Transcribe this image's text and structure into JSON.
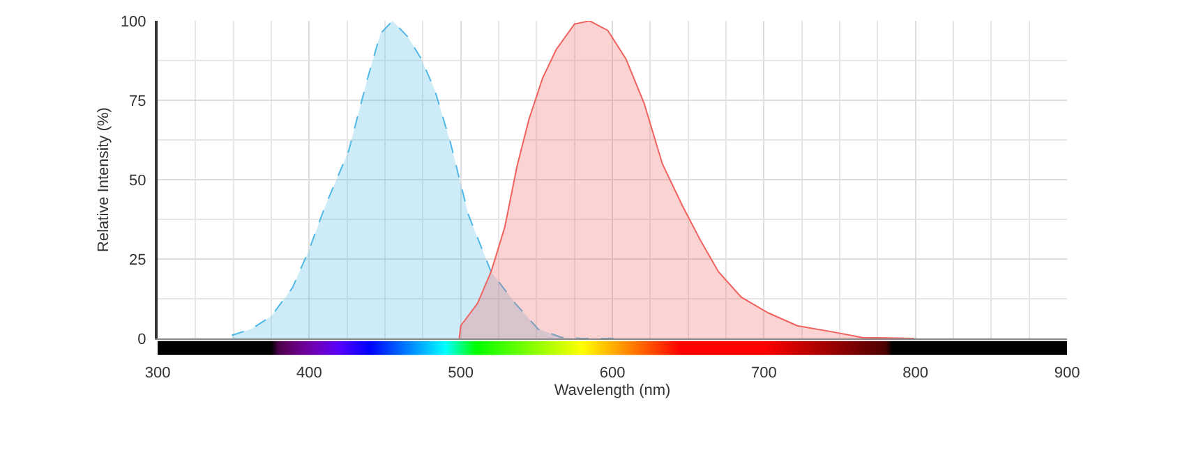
{
  "chart_data": {
    "type": "area",
    "xlabel": "Wavelength (nm)",
    "ylabel": "Relative Intensity (%)",
    "xlim": [
      300,
      900
    ],
    "xticks": [
      300,
      400,
      500,
      600,
      700,
      800,
      900
    ],
    "ylim": [
      0,
      100
    ],
    "yticks": [
      0,
      25,
      50,
      75,
      100
    ],
    "grid": true,
    "legend": false,
    "marker": "none",
    "series": [
      {
        "color": "#4fb8e6",
        "line_style": "dashed",
        "x": [
          349,
          362,
          375,
          389,
          400,
          410,
          426,
          438,
          447,
          455,
          465,
          474,
          483,
          493,
          505,
          520,
          536,
          551,
          566,
          580,
          601
        ],
        "values": [
          1,
          3,
          7,
          16,
          28,
          41,
          59,
          81,
          96,
          100,
          95,
          88,
          78,
          62,
          39,
          21,
          11,
          3,
          0.4,
          0,
          0
        ]
      },
      {
        "color": "#f0625e",
        "line_style": "solid",
        "x": [
          499,
          500,
          511,
          520,
          529,
          537,
          545,
          554,
          563,
          575,
          585,
          597,
          609,
          621,
          633,
          646,
          658,
          670,
          685,
          703,
          722,
          746,
          765,
          799
        ],
        "values": [
          0,
          4,
          11,
          21,
          35,
          54,
          69,
          82,
          91,
          99,
          100,
          97,
          88,
          74,
          55,
          42,
          31,
          21,
          13,
          8,
          4,
          2,
          0.3,
          0
        ]
      }
    ]
  }
}
